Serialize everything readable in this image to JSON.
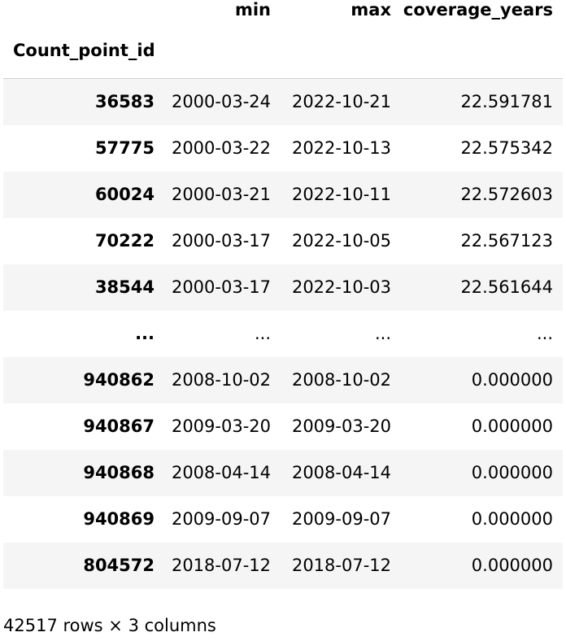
{
  "dataframe": {
    "columns": [
      "min",
      "max",
      "coverage_years"
    ],
    "index_name": "Count_point_id",
    "rows": [
      {
        "index": "36583",
        "min": "2000-03-24",
        "max": "2022-10-21",
        "coverage_years": "22.591781"
      },
      {
        "index": "57775",
        "min": "2000-03-22",
        "max": "2022-10-13",
        "coverage_years": "22.575342"
      },
      {
        "index": "60024",
        "min": "2000-03-21",
        "max": "2022-10-11",
        "coverage_years": "22.572603"
      },
      {
        "index": "70222",
        "min": "2000-03-17",
        "max": "2022-10-05",
        "coverage_years": "22.567123"
      },
      {
        "index": "38544",
        "min": "2000-03-17",
        "max": "2022-10-03",
        "coverage_years": "22.561644"
      },
      {
        "index": "...",
        "min": "...",
        "max": "...",
        "coverage_years": "..."
      },
      {
        "index": "940862",
        "min": "2008-10-02",
        "max": "2008-10-02",
        "coverage_years": "0.000000"
      },
      {
        "index": "940867",
        "min": "2009-03-20",
        "max": "2009-03-20",
        "coverage_years": "0.000000"
      },
      {
        "index": "940868",
        "min": "2008-04-14",
        "max": "2008-04-14",
        "coverage_years": "0.000000"
      },
      {
        "index": "940869",
        "min": "2009-09-07",
        "max": "2009-09-07",
        "coverage_years": "0.000000"
      },
      {
        "index": "804572",
        "min": "2018-07-12",
        "max": "2018-07-12",
        "coverage_years": "0.000000"
      }
    ],
    "shape_note": "42517 rows × 3 columns"
  }
}
